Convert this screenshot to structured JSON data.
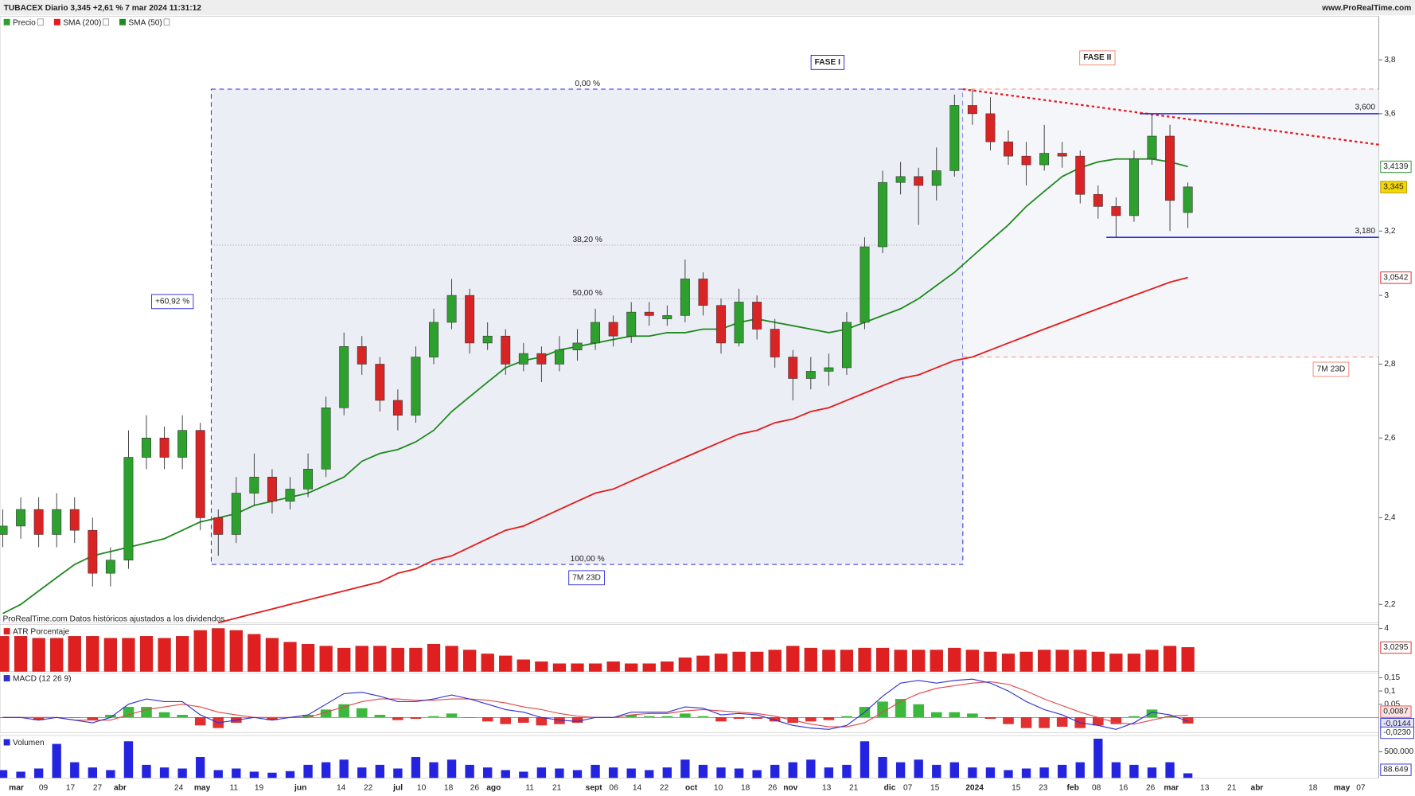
{
  "chart_data": {
    "type": "candlestick",
    "title": "TUBACEX Diario 3,345 +2,61 % 7 mar 2024 11:31:12",
    "source": "www.ProRealTime.com",
    "note": "ProRealTime.com Datos históricos ajustados a los dividendos",
    "log_scale": true,
    "ylim": [
      2.16,
      3.97
    ],
    "yticks": [
      {
        "value": 3.8,
        "label": "3,8"
      },
      {
        "value": 3.6,
        "label": "3,6"
      },
      {
        "value": 3.2,
        "label": "3,2"
      },
      3,
      {
        "value": 2.8,
        "label": "2,8"
      },
      {
        "value": 2.6,
        "label": "2,6"
      },
      {
        "value": 2.4,
        "label": "2,4"
      },
      {
        "value": 2.2,
        "label": "2,2"
      }
    ],
    "date_labels": [
      "mar",
      "09",
      "17",
      "27",
      "abr",
      "24",
      "may",
      "11",
      "19",
      "jun",
      "14",
      "22",
      "jul",
      "10",
      "18",
      "26",
      "ago",
      "11",
      "21",
      "sept",
      "06",
      "14",
      "22",
      "oct",
      "10",
      "18",
      "26",
      "nov",
      "13",
      "21",
      "dic",
      "07",
      "15",
      "2024",
      "15",
      "23",
      "feb",
      "08",
      "16",
      "26",
      "mar",
      "13",
      "21",
      "abr",
      "18",
      "may",
      "07"
    ],
    "price": {
      "name": "Precio",
      "up_color": "#2ea02e",
      "down_color": "#d82424",
      "last_label": "3,345",
      "candles": [
        [
          2.36,
          2.42,
          2.33,
          2.38
        ],
        [
          2.38,
          2.45,
          2.35,
          2.42
        ],
        [
          2.42,
          2.45,
          2.33,
          2.36
        ],
        [
          2.36,
          2.46,
          2.33,
          2.42
        ],
        [
          2.42,
          2.45,
          2.34,
          2.37
        ],
        [
          2.37,
          2.4,
          2.24,
          2.27
        ],
        [
          2.27,
          2.33,
          2.24,
          2.3
        ],
        [
          2.3,
          2.62,
          2.28,
          2.55
        ],
        [
          2.55,
          2.66,
          2.52,
          2.6
        ],
        [
          2.6,
          2.63,
          2.52,
          2.55
        ],
        [
          2.55,
          2.66,
          2.52,
          2.62
        ],
        [
          2.62,
          2.64,
          2.37,
          2.4
        ],
        [
          2.4,
          2.42,
          2.31,
          2.36
        ],
        [
          2.36,
          2.5,
          2.34,
          2.46
        ],
        [
          2.46,
          2.56,
          2.43,
          2.5
        ],
        [
          2.5,
          2.52,
          2.41,
          2.44
        ],
        [
          2.44,
          2.5,
          2.42,
          2.47
        ],
        [
          2.47,
          2.56,
          2.45,
          2.52
        ],
        [
          2.52,
          2.71,
          2.5,
          2.68
        ],
        [
          2.68,
          2.89,
          2.66,
          2.85
        ],
        [
          2.85,
          2.88,
          2.77,
          2.8
        ],
        [
          2.8,
          2.82,
          2.67,
          2.7
        ],
        [
          2.7,
          2.73,
          2.62,
          2.66
        ],
        [
          2.66,
          2.85,
          2.64,
          2.82
        ],
        [
          2.82,
          2.96,
          2.8,
          2.92
        ],
        [
          2.92,
          3.05,
          2.9,
          3.0
        ],
        [
          3.0,
          3.02,
          2.83,
          2.86
        ],
        [
          2.86,
          2.92,
          2.84,
          2.88
        ],
        [
          2.88,
          2.9,
          2.77,
          2.8
        ],
        [
          2.8,
          2.86,
          2.78,
          2.83
        ],
        [
          2.83,
          2.85,
          2.75,
          2.8
        ],
        [
          2.8,
          2.88,
          2.78,
          2.84
        ],
        [
          2.84,
          2.9,
          2.81,
          2.86
        ],
        [
          2.86,
          2.96,
          2.84,
          2.92
        ],
        [
          2.92,
          2.94,
          2.85,
          2.88
        ],
        [
          2.88,
          2.98,
          2.86,
          2.95
        ],
        [
          2.95,
          2.98,
          2.91,
          2.94
        ],
        [
          2.93,
          2.97,
          2.91,
          2.94
        ],
        [
          2.94,
          3.11,
          2.92,
          3.05
        ],
        [
          3.05,
          3.07,
          2.94,
          2.97
        ],
        [
          2.97,
          2.99,
          2.83,
          2.86
        ],
        [
          2.86,
          3.02,
          2.85,
          2.98
        ],
        [
          2.98,
          3.0,
          2.87,
          2.9
        ],
        [
          2.9,
          2.93,
          2.79,
          2.82
        ],
        [
          2.82,
          2.84,
          2.7,
          2.76
        ],
        [
          2.76,
          2.82,
          2.73,
          2.78
        ],
        [
          2.78,
          2.83,
          2.74,
          2.79
        ],
        [
          2.79,
          2.95,
          2.77,
          2.92
        ],
        [
          2.92,
          3.18,
          2.9,
          3.15
        ],
        [
          3.15,
          3.4,
          3.13,
          3.36
        ],
        [
          3.36,
          3.43,
          3.32,
          3.38
        ],
        [
          3.38,
          3.41,
          3.22,
          3.35
        ],
        [
          3.35,
          3.48,
          3.3,
          3.4
        ],
        [
          3.4,
          3.67,
          3.38,
          3.63
        ],
        [
          3.63,
          3.69,
          3.56,
          3.6
        ],
        [
          3.6,
          3.66,
          3.47,
          3.5
        ],
        [
          3.5,
          3.54,
          3.42,
          3.45
        ],
        [
          3.45,
          3.5,
          3.35,
          3.42
        ],
        [
          3.42,
          3.56,
          3.4,
          3.46
        ],
        [
          3.46,
          3.5,
          3.41,
          3.45
        ],
        [
          3.45,
          3.47,
          3.29,
          3.32
        ],
        [
          3.32,
          3.35,
          3.24,
          3.28
        ],
        [
          3.28,
          3.31,
          3.18,
          3.25
        ],
        [
          3.25,
          3.47,
          3.23,
          3.44
        ],
        [
          3.44,
          3.6,
          3.42,
          3.52
        ],
        [
          3.52,
          3.56,
          3.2,
          3.3
        ],
        [
          3.26,
          3.36,
          3.21,
          3.345
        ]
      ]
    },
    "series": [
      {
        "name": "SMA (200)",
        "color": "#e31b1b",
        "last_label": "3,0542",
        "values": [
          null,
          null,
          null,
          null,
          null,
          null,
          null,
          null,
          null,
          null,
          null,
          null,
          2.16,
          2.17,
          2.18,
          2.19,
          2.2,
          2.21,
          2.22,
          2.23,
          2.24,
          2.25,
          2.27,
          2.28,
          2.3,
          2.31,
          2.33,
          2.35,
          2.37,
          2.38,
          2.4,
          2.42,
          2.44,
          2.46,
          2.47,
          2.49,
          2.51,
          2.53,
          2.55,
          2.57,
          2.59,
          2.61,
          2.62,
          2.64,
          2.65,
          2.67,
          2.68,
          2.7,
          2.72,
          2.74,
          2.76,
          2.77,
          2.79,
          2.81,
          2.82,
          2.84,
          2.86,
          2.88,
          2.9,
          2.92,
          2.94,
          2.96,
          2.98,
          3.0,
          3.02,
          3.04,
          3.0542
        ]
      },
      {
        "name": "SMA (50)",
        "color": "#1f8a1f",
        "last_label": "3,4139",
        "values": [
          2.18,
          2.2,
          2.23,
          2.26,
          2.29,
          2.31,
          2.32,
          2.33,
          2.34,
          2.35,
          2.37,
          2.39,
          2.4,
          2.41,
          2.43,
          2.44,
          2.45,
          2.46,
          2.48,
          2.5,
          2.54,
          2.56,
          2.57,
          2.59,
          2.62,
          2.67,
          2.71,
          2.75,
          2.79,
          2.81,
          2.82,
          2.84,
          2.85,
          2.86,
          2.87,
          2.88,
          2.88,
          2.89,
          2.89,
          2.9,
          2.9,
          2.92,
          2.93,
          2.92,
          2.91,
          2.9,
          2.89,
          2.9,
          2.92,
          2.94,
          2.96,
          2.99,
          3.03,
          3.07,
          3.12,
          3.17,
          3.22,
          3.28,
          3.33,
          3.38,
          3.41,
          3.43,
          3.44,
          3.44,
          3.44,
          3.43,
          3.4139
        ]
      }
    ],
    "fibonacci": {
      "high": 3.69,
      "low": 2.29,
      "color": "#2a2ad8",
      "span_label": "7M 23D",
      "change_label": "+60,92 %",
      "levels": [
        {
          "value": 0,
          "label": "0,00 %"
        },
        {
          "value": 38.2,
          "label": "38,20 %"
        },
        {
          "value": 50,
          "label": "50,00 %"
        },
        {
          "value": 100,
          "label": "100,00 %"
        }
      ]
    },
    "projection": {
      "high": 3.69,
      "low": 2.82,
      "label": "7M 23D",
      "color": "#f4806c"
    },
    "phases": [
      {
        "label": "FASE I",
        "color": "#1a1adb"
      },
      {
        "label": "FASE II",
        "color": "#f4806c"
      }
    ],
    "trendline": {
      "values": [
        3.69,
        3.49
      ],
      "color": "#e31b1b"
    },
    "levels": [
      {
        "value": 3.6,
        "label": "3,600"
      },
      {
        "value": 3.18,
        "label": "3,180"
      }
    ],
    "atr": {
      "name": "ATR Porcentaje",
      "color": "#e02020",
      "ylim": [
        1.8,
        4.2
      ],
      "yticks": [
        4
      ],
      "last_label": "3,0295",
      "values": [
        3.6,
        3.6,
        3.5,
        3.5,
        3.6,
        3.6,
        3.5,
        3.5,
        3.6,
        3.5,
        3.6,
        3.9,
        4.0,
        3.9,
        3.7,
        3.5,
        3.3,
        3.2,
        3.1,
        3.0,
        3.1,
        3.1,
        3.0,
        3.0,
        3.2,
        3.1,
        2.9,
        2.7,
        2.6,
        2.4,
        2.3,
        2.2,
        2.2,
        2.2,
        2.3,
        2.2,
        2.2,
        2.3,
        2.5,
        2.6,
        2.7,
        2.8,
        2.8,
        2.9,
        3.1,
        3.0,
        2.9,
        2.9,
        3.0,
        3.0,
        2.9,
        2.9,
        2.9,
        3.0,
        2.9,
        2.8,
        2.7,
        2.8,
        2.9,
        2.9,
        2.9,
        2.8,
        2.7,
        2.7,
        2.9,
        3.1,
        3.0295
      ]
    },
    "macd": {
      "name": "MACD (12 26 9)",
      "ylim": [
        -0.058,
        0.167
      ],
      "yticks": [
        {
          "value": 0.15,
          "label": "0,15"
        },
        {
          "value": 0.1,
          "label": "0,1"
        },
        {
          "value": 0.05,
          "label": "0,05"
        }
      ],
      "line": {
        "color": "#3030d0",
        "last_label": "-0,0144",
        "values": [
          0,
          0,
          -0.01,
          0,
          -0.01,
          -0.02,
          0,
          0.05,
          0.07,
          0.06,
          0.06,
          0.01,
          -0.02,
          -0.01,
          0,
          -0.01,
          0,
          0.01,
          0.05,
          0.09,
          0.095,
          0.08,
          0.06,
          0.06,
          0.07,
          0.085,
          0.07,
          0.05,
          0.03,
          0.02,
          0,
          -0.01,
          -0.015,
          0,
          0,
          0.02,
          0.02,
          0.02,
          0.04,
          0.035,
          0.01,
          0.015,
          0.01,
          -0.01,
          -0.03,
          -0.04,
          -0.045,
          -0.03,
          0.02,
          0.08,
          0.13,
          0.14,
          0.13,
          0.14,
          0.145,
          0.13,
          0.1,
          0.06,
          0.03,
          0.01,
          -0.02,
          -0.03,
          -0.045,
          -0.02,
          0.02,
          0.01,
          -0.0144
        ]
      },
      "signal": {
        "color": "#e04848",
        "last_label": "0,0087",
        "values": [
          0,
          0,
          0,
          0,
          -0.01,
          -0.01,
          -0.01,
          0.01,
          0.03,
          0.04,
          0.05,
          0.04,
          0.02,
          0.01,
          0,
          0,
          0,
          0,
          0.02,
          0.04,
          0.06,
          0.07,
          0.07,
          0.065,
          0.065,
          0.07,
          0.07,
          0.065,
          0.055,
          0.04,
          0.03,
          0.015,
          0.005,
          0,
          0,
          0.01,
          0.015,
          0.015,
          0.025,
          0.03,
          0.025,
          0.02,
          0.015,
          0.005,
          -0.01,
          -0.025,
          -0.035,
          -0.035,
          -0.02,
          0.02,
          0.06,
          0.09,
          0.11,
          0.12,
          0.13,
          0.135,
          0.125,
          0.1,
          0.07,
          0.045,
          0.02,
          0,
          -0.02,
          -0.025,
          -0.01,
          0.005,
          0.0087
        ]
      },
      "histogram": {
        "up_color": "#3cb93c",
        "down_color": "#e03030",
        "last_label": "-0,0230",
        "values": [
          0,
          0,
          -0.01,
          0,
          0,
          -0.01,
          0.01,
          0.04,
          0.04,
          0.02,
          0.01,
          -0.03,
          -0.04,
          -0.02,
          0,
          -0.01,
          0,
          0.01,
          0.03,
          0.05,
          0.035,
          0.01,
          -0.01,
          -0.005,
          0.005,
          0.015,
          0,
          -0.015,
          -0.025,
          -0.02,
          -0.03,
          -0.025,
          -0.02,
          0,
          0,
          0.01,
          0.005,
          0.005,
          0.015,
          0.005,
          -0.015,
          -0.005,
          -0.005,
          -0.015,
          -0.02,
          -0.015,
          -0.01,
          0.005,
          0.04,
          0.06,
          0.07,
          0.05,
          0.02,
          0.02,
          0.015,
          -0.005,
          -0.025,
          -0.04,
          -0.04,
          -0.035,
          -0.04,
          -0.03,
          -0.025,
          0.005,
          0.03,
          0.005,
          -0.023
        ]
      }
    },
    "volume": {
      "name": "Volumen",
      "color": "#2424e0",
      "ylim": [
        0,
        810000
      ],
      "yticks": [
        {
          "value": 500000,
          "label": "500.000"
        }
      ],
      "last_label": "88.649",
      "values": [
        150000,
        120000,
        180000,
        650000,
        300000,
        200000,
        150000,
        700000,
        250000,
        200000,
        180000,
        400000,
        150000,
        180000,
        120000,
        100000,
        130000,
        250000,
        300000,
        350000,
        200000,
        250000,
        180000,
        400000,
        300000,
        350000,
        250000,
        200000,
        150000,
        120000,
        200000,
        180000,
        150000,
        250000,
        200000,
        180000,
        150000,
        200000,
        350000,
        250000,
        200000,
        180000,
        150000,
        250000,
        300000,
        350000,
        200000,
        250000,
        700000,
        400000,
        300000,
        350000,
        250000,
        300000,
        200000,
        200000,
        150000,
        180000,
        200000,
        250000,
        300000,
        750000,
        300000,
        250000,
        200000,
        300000,
        88649
      ]
    }
  }
}
